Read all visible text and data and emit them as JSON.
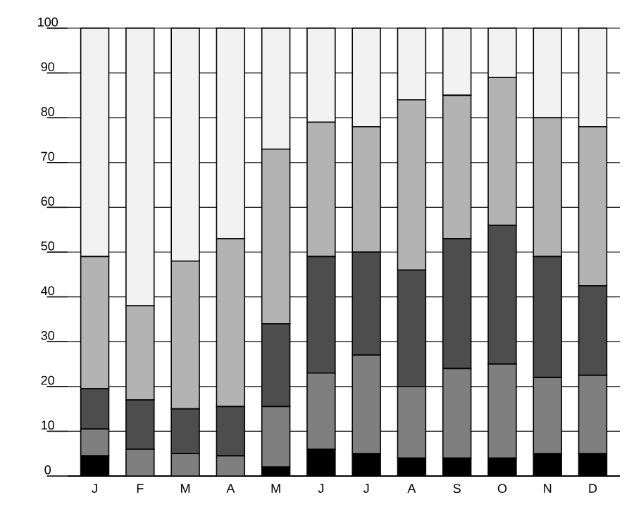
{
  "chart_data": {
    "type": "bar",
    "stacked": true,
    "categories": [
      "J",
      "F",
      "M",
      "A",
      "M",
      "J",
      "J",
      "A",
      "S",
      "O",
      "N",
      "D"
    ],
    "series": [
      {
        "color": "#000000",
        "values": [
          4.5,
          0,
          0,
          0,
          2,
          6,
          5,
          4,
          4,
          4,
          5,
          5
        ]
      },
      {
        "color": "#7f7f7f",
        "values": [
          6,
          6,
          5,
          4.5,
          13.5,
          17,
          22,
          16,
          20,
          21,
          17,
          17.5
        ]
      },
      {
        "color": "#4d4d4d",
        "values": [
          9,
          11,
          10,
          11,
          18.5,
          26,
          23,
          26,
          29,
          31,
          27,
          20
        ]
      },
      {
        "color": "#b3b3b3",
        "values": [
          29.5,
          21,
          33,
          37.5,
          39,
          30,
          28,
          38,
          32,
          33,
          31,
          35.5
        ]
      },
      {
        "color": "#f2f2f2",
        "values": [
          51,
          62,
          52,
          47,
          27,
          21,
          22,
          16,
          15,
          11,
          20,
          22
        ]
      }
    ],
    "ylim": [
      0,
      100
    ],
    "yticks": [
      0,
      10,
      20,
      30,
      40,
      50,
      60,
      70,
      80,
      90,
      100
    ],
    "grid": "y"
  }
}
